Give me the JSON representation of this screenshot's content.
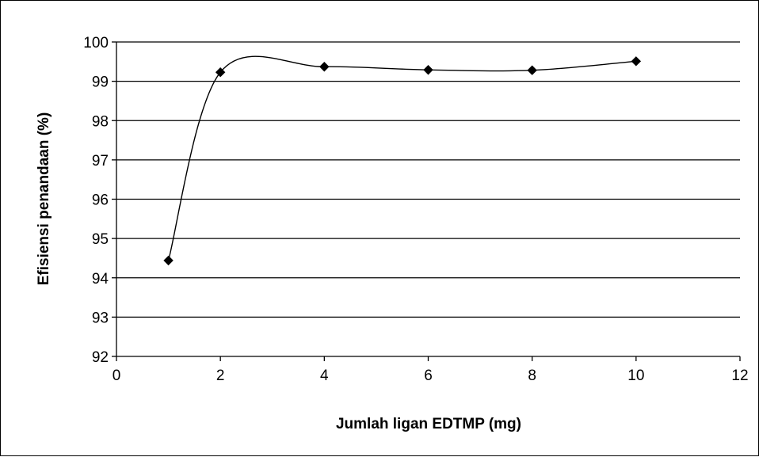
{
  "chart_data": {
    "type": "line",
    "title": "",
    "xlabel": "Jumlah ligan EDTMP (mg)",
    "ylabel": "Efisiensi penandaan (%)",
    "xlim": [
      0,
      12
    ],
    "ylim": [
      92,
      100
    ],
    "xticks": [
      0,
      2,
      4,
      6,
      8,
      10,
      12
    ],
    "yticks": [
      92,
      93,
      94,
      95,
      96,
      97,
      98,
      99,
      100
    ],
    "grid": "horizontal",
    "smoothed": true,
    "marker": "diamond",
    "legend": "none",
    "series": [
      {
        "x": [
          1,
          2,
          4,
          6,
          8,
          10
        ],
        "y": [
          94.44,
          99.23,
          99.37,
          99.29,
          99.28,
          99.51
        ]
      }
    ],
    "colors": {
      "line": "#000000",
      "grid": "#000000",
      "background": "#ffffff"
    }
  }
}
